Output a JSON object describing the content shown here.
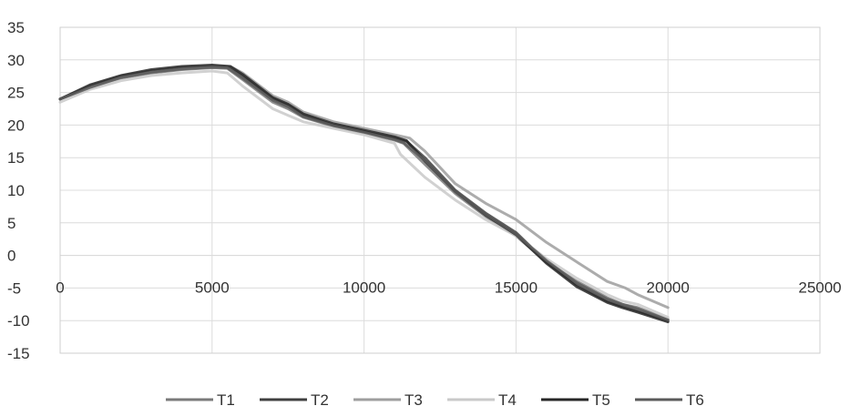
{
  "chart_data": {
    "type": "line",
    "title": "",
    "xlabel": "",
    "ylabel": "",
    "xlim": [
      0,
      25000
    ],
    "ylim": [
      -15,
      35
    ],
    "xticks": [
      0,
      5000,
      10000,
      15000,
      20000,
      25000
    ],
    "xtick_labels": [
      "0",
      "5000",
      "10000",
      "15000",
      "20000",
      "25000"
    ],
    "yticks": [
      35,
      30,
      25,
      20,
      15,
      10,
      5,
      0,
      -5,
      -10,
      -15
    ],
    "ytick_labels": [
      "35",
      "30",
      "25",
      "20",
      "15",
      "10",
      "5",
      "0",
      "-5",
      "-10",
      "-15"
    ],
    "grid": true,
    "legend_position": "bottom",
    "series": [
      {
        "name": "T1",
        "color": "#7a7a7a",
        "x": [
          0,
          1000,
          2000,
          3000,
          4000,
          5000,
          5500,
          6000,
          7000,
          7500,
          8000,
          9000,
          10000,
          11000,
          11300,
          12000,
          13000,
          14000,
          15000,
          16000,
          17000,
          18000,
          18500,
          19000,
          20000
        ],
        "y": [
          24,
          26,
          27.2,
          28,
          28.5,
          28.8,
          28.7,
          27,
          23.5,
          22.5,
          21.2,
          19.8,
          18.8,
          17.7,
          17.2,
          14,
          9.5,
          6,
          3,
          -1,
          -4,
          -6.5,
          -7.5,
          -8,
          -9.8
        ]
      },
      {
        "name": "T2",
        "color": "#3f3f3f",
        "x": [
          0,
          1000,
          2000,
          3000,
          4000,
          5000,
          5600,
          6000,
          7000,
          7500,
          8000,
          9000,
          10000,
          11000,
          11400,
          12000,
          13000,
          14000,
          15000,
          16000,
          17000,
          18000,
          18500,
          19000,
          20000
        ],
        "y": [
          24,
          26,
          27.5,
          28.3,
          28.8,
          29,
          28.9,
          27.5,
          24,
          23,
          21.5,
          20,
          19,
          18,
          17.5,
          15,
          10,
          6.5,
          3.5,
          -1,
          -4.5,
          -7,
          -7.8,
          -8.5,
          -10
        ]
      },
      {
        "name": "T3",
        "color": "#9e9e9e",
        "x": [
          0,
          1000,
          2000,
          3000,
          4000,
          5000,
          5600,
          6000,
          7000,
          7500,
          8000,
          9000,
          10000,
          11000,
          11500,
          12000,
          13000,
          14000,
          15000,
          16000,
          17000,
          18000,
          18600,
          19000,
          20000
        ],
        "y": [
          24,
          26,
          27.5,
          28.3,
          28.8,
          29,
          29,
          28,
          24.5,
          23.5,
          22,
          20.5,
          19.5,
          18.5,
          18,
          16,
          11,
          8,
          5.5,
          2,
          -1,
          -4,
          -5,
          -6,
          -8
        ]
      },
      {
        "name": "T4",
        "color": "#c9c9c9",
        "x": [
          0,
          1000,
          2000,
          3000,
          4000,
          5000,
          5500,
          6000,
          7000,
          7500,
          8000,
          9000,
          10000,
          11000,
          11200,
          12000,
          13000,
          14000,
          15000,
          16000,
          17000,
          18000,
          18500,
          19000,
          20000
        ],
        "y": [
          23.5,
          25.5,
          26.8,
          27.6,
          28,
          28.3,
          28,
          26,
          22.5,
          21.5,
          20.5,
          19.5,
          18.5,
          17.2,
          15.5,
          12,
          8.5,
          5.5,
          3,
          -0.5,
          -3.5,
          -6,
          -7,
          -7.5,
          -9.5
        ]
      },
      {
        "name": "T5",
        "color": "#262626",
        "x": [
          0,
          1000,
          2000,
          3000,
          4000,
          5000,
          5600,
          6000,
          7000,
          7500,
          8000,
          9000,
          10000,
          11000,
          11400,
          12000,
          13000,
          14000,
          15000,
          16000,
          17000,
          18000,
          18500,
          19000,
          20000
        ],
        "y": [
          24,
          26.2,
          27.6,
          28.5,
          29,
          29.2,
          29,
          27.8,
          24.2,
          23.2,
          21.7,
          20.2,
          19.2,
          18.2,
          17.6,
          14.5,
          9.8,
          6.2,
          3.2,
          -1.2,
          -4.8,
          -7.2,
          -8,
          -8.7,
          -10.2
        ]
      },
      {
        "name": "T6",
        "color": "#5a5a5a",
        "x": [
          0,
          1000,
          2000,
          3000,
          4000,
          5000,
          5500,
          6000,
          7000,
          7500,
          8000,
          9000,
          10000,
          11000,
          11300,
          12000,
          13000,
          14000,
          15000,
          16000,
          17000,
          18000,
          18500,
          19000,
          20000
        ],
        "y": [
          24,
          25.8,
          27.3,
          28.1,
          28.6,
          28.9,
          28.8,
          27.2,
          23.8,
          22.8,
          21.3,
          19.9,
          18.9,
          17.8,
          17.3,
          14.6,
          9.8,
          6.3,
          3.3,
          -0.8,
          -4.2,
          -6.7,
          -7.5,
          -8.2,
          -9.9
        ]
      }
    ]
  }
}
